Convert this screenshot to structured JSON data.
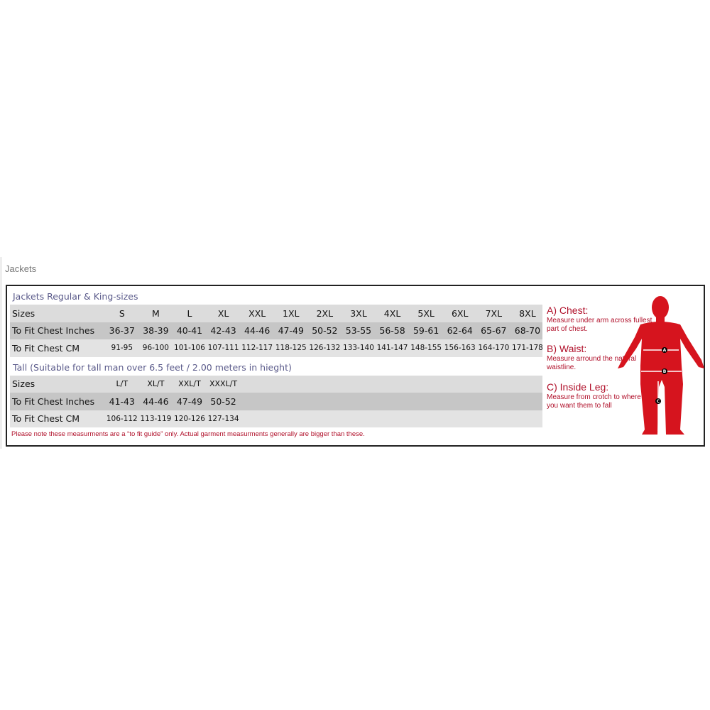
{
  "heading": "Jackets",
  "regular": {
    "title": "Jackets Regular & King-sizes",
    "rows": [
      {
        "label": "Sizes",
        "values": [
          "S",
          "M",
          "L",
          "XL",
          "XXL",
          "1XL",
          "2XL",
          "3XL",
          "4XL",
          "5XL",
          "6XL",
          "7XL",
          "8XL"
        ]
      },
      {
        "label": "To Fit Chest Inches",
        "values": [
          "36-37",
          "38-39",
          "40-41",
          "42-43",
          "44-46",
          "47-49",
          "50-52",
          "53-55",
          "56-58",
          "59-61",
          "62-64",
          "65-67",
          "68-70"
        ]
      },
      {
        "label": "To Fit Chest CM",
        "values": [
          "91-95",
          "96-100",
          "101-106",
          "107-111",
          "112-117",
          "118-125",
          "126-132",
          "133-140",
          "141-147",
          "148-155",
          "156-163",
          "164-170",
          "171-178"
        ]
      }
    ]
  },
  "tall": {
    "title": "Tall (Suitable for tall man over 6.5 feet / 2.00 meters in hieght)",
    "rows": [
      {
        "label": "Sizes",
        "values": [
          "L/T",
          "XL/T",
          "XXL/T",
          "XXXL/T"
        ]
      },
      {
        "label": "To Fit Chest Inches",
        "values": [
          "41-43",
          "44-46",
          "47-49",
          "50-52"
        ]
      },
      {
        "label": "To Fit Chest CM",
        "values": [
          "106-112",
          "113-119",
          "120-126",
          "127-134"
        ]
      }
    ]
  },
  "note": "Please note these measurments are a “to fit guide” only. Actual garment measurments generally are bigger than these.",
  "guide": [
    {
      "title": "A) Chest:",
      "text": "Measure under arm across fullest part of chest.",
      "marker": "A"
    },
    {
      "title": "B) Waist:",
      "text": "Measure arround the natural waistline.",
      "marker": "B"
    },
    {
      "title": "C) Inside Leg:",
      "text": "Measure from crotch to where you want them to fall",
      "marker": "C"
    }
  ],
  "colors": {
    "accent": "#b0102a",
    "figure": "#d6141e"
  }
}
